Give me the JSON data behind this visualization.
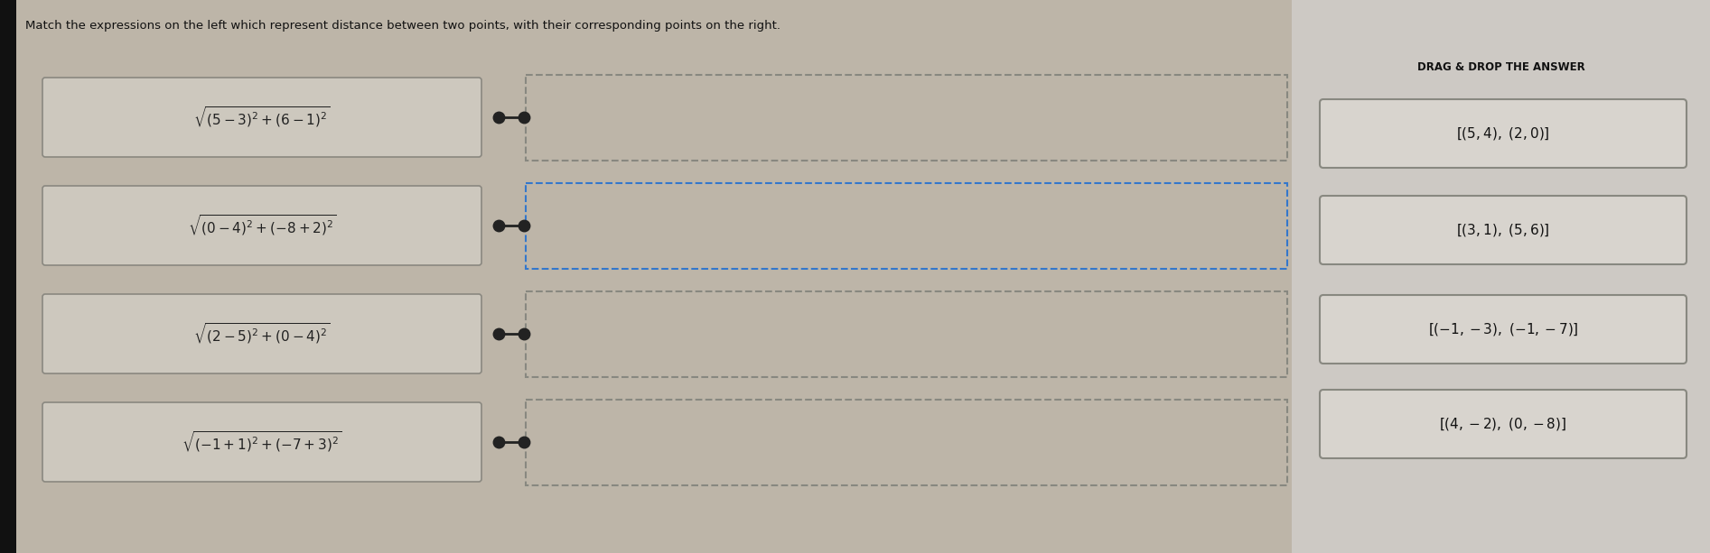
{
  "title": "Match the expressions on the left which represent distance between two points, with their corresponding points on the right.",
  "bg_color": "#bdb5a8",
  "left_box_color": "#cdc8be",
  "left_box_border": "#8a8880",
  "left_expressions": [
    "$\\sqrt{(5-3)^2+(6-1)^2}$",
    "$\\sqrt{(0-4)^2+(-8+2)^2}$",
    "$\\sqrt{(2-5)^2+(0-4)^2}$",
    "$\\sqrt{(-1+1)^2+(-7+3)^2}$"
  ],
  "right_answers": [
    "$[(5,4),\\ (2,0)]$",
    "$[(3,1),\\ (5,6)]$",
    "$[(-1,-3),\\ (-1,-7)]$",
    "$[(4,-2),\\ (0,-8)]$"
  ],
  "drag_drop_label": "DRAG & DROP THE ANSWER",
  "dot_color": "#222222",
  "line_color": "#222222",
  "right_drop_border_gray": "#888880",
  "right_drop_border_blue": "#3377cc",
  "answer_box_bg": "#d8d4ce",
  "answer_box_border": "#888880",
  "right_panel_bg": "#cdc9c4",
  "black_tab_color": "#111111",
  "title_fontsize": 9.5,
  "expr_fontsize": 11,
  "answer_fontsize": 11,
  "drag_label_fontsize": 8.5,
  "fig_width": 18.93,
  "fig_height": 6.13,
  "fig_dpi": 100
}
